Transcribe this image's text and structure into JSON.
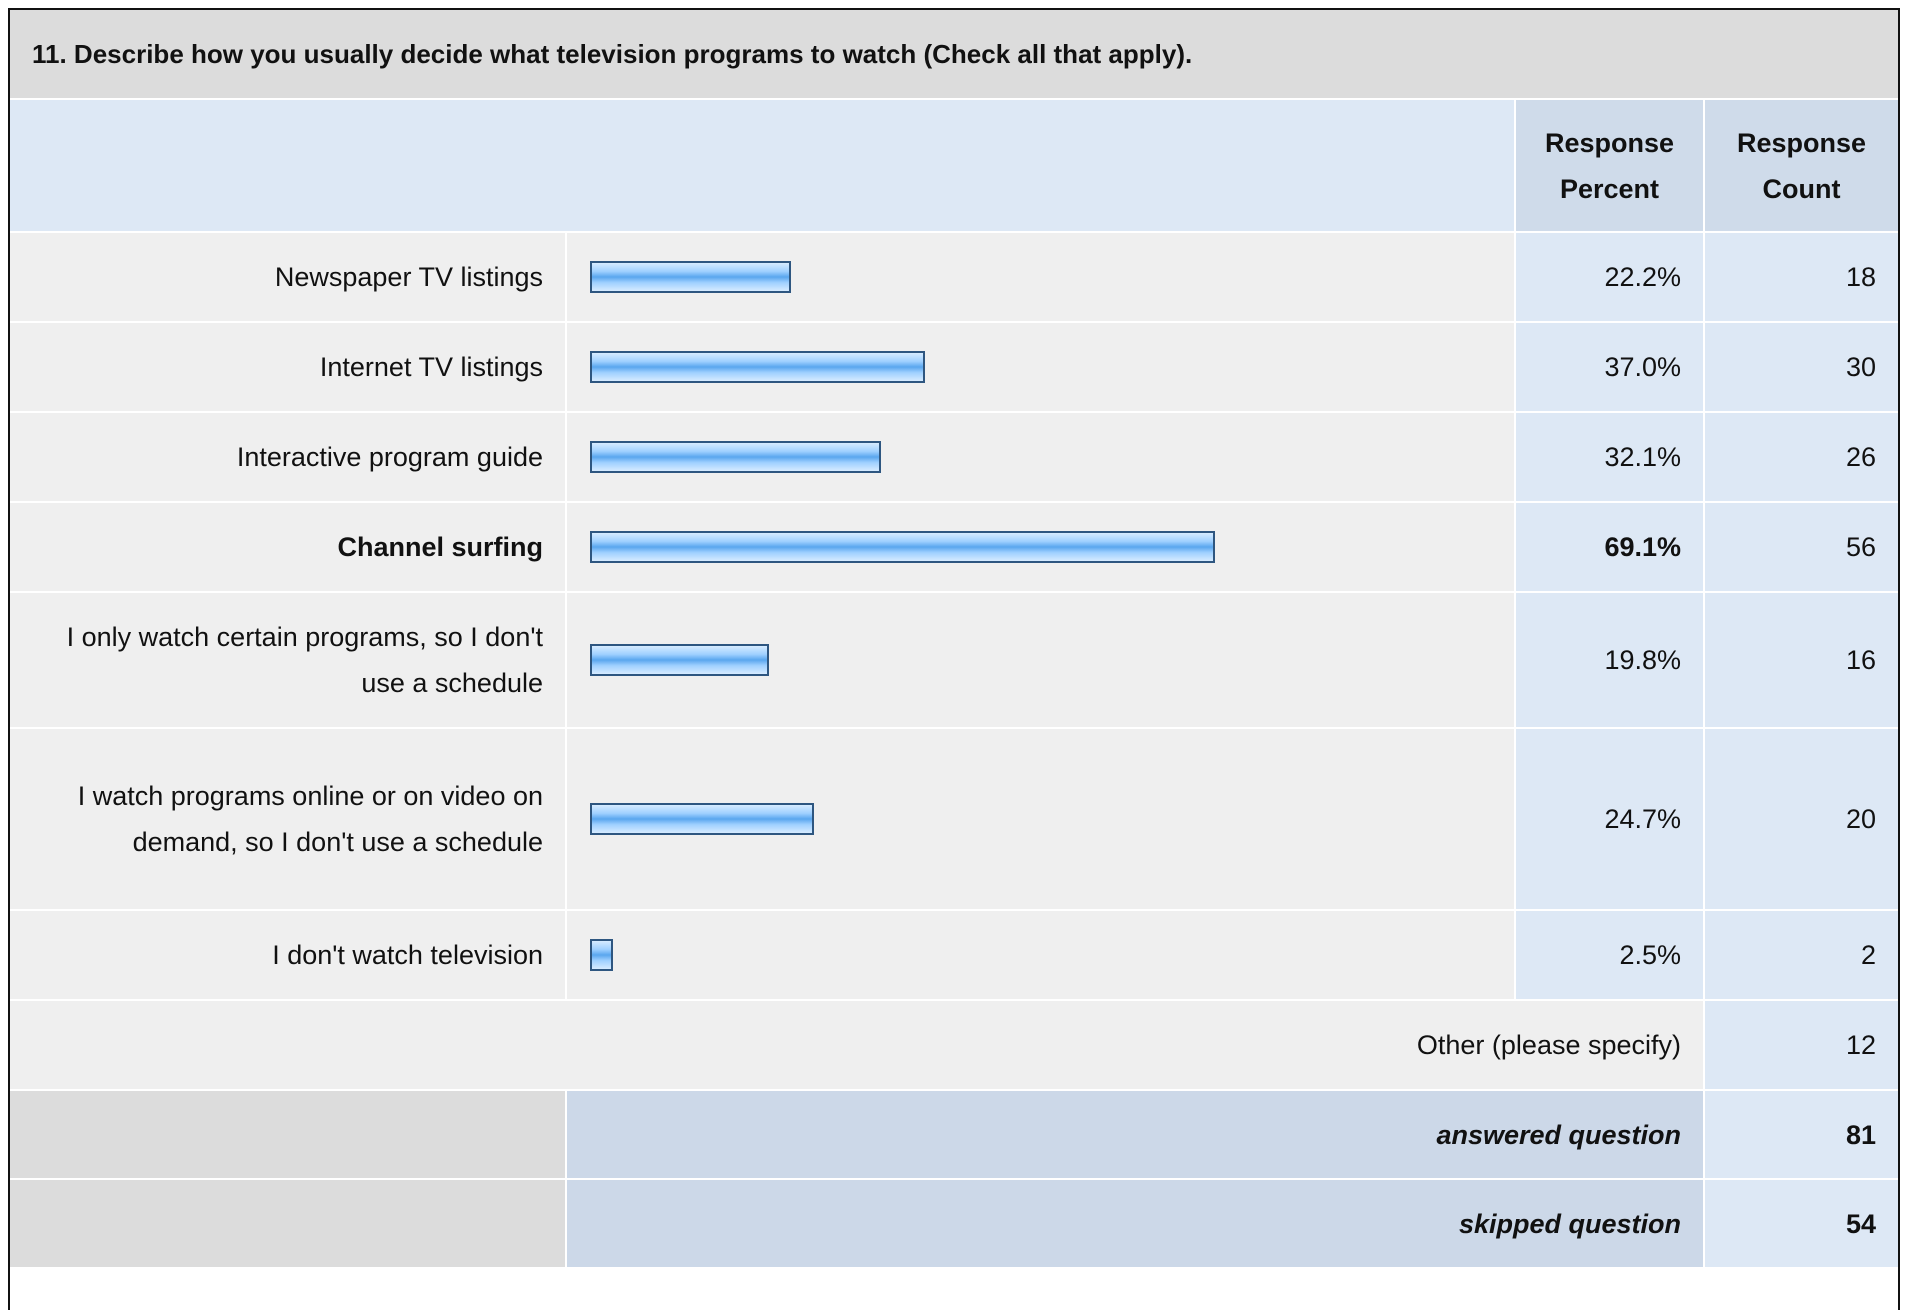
{
  "title": "11. Describe how you usually decide what television programs to watch (Check all that apply).",
  "header": {
    "percent": "Response Percent",
    "count": "Response Count"
  },
  "table": {
    "rows": [
      {
        "label": "Newspaper TV listings",
        "percent": 22.2,
        "percent_label": "22.2%",
        "count": 18
      },
      {
        "label": "Internet TV listings",
        "percent": 37.0,
        "percent_label": "37.0%",
        "count": 30
      },
      {
        "label": "Interactive program guide",
        "percent": 32.1,
        "percent_label": "32.1%",
        "count": 26
      },
      {
        "label": "Channel surfing",
        "percent": 69.1,
        "percent_label": "69.1%",
        "count": 56,
        "highlight": true
      },
      {
        "label": "I only watch certain programs, so I don't use a schedule",
        "percent": 19.8,
        "percent_label": "19.8%",
        "count": 16
      },
      {
        "label": "I watch programs online or on video on demand, so I don't use a schedule",
        "percent": 24.7,
        "percent_label": "24.7%",
        "count": 20
      },
      {
        "label": "I don't watch television",
        "percent": 2.5,
        "percent_label": "2.5%",
        "count": 2
      }
    ]
  },
  "other": {
    "label": "Other (please specify)",
    "count": 12
  },
  "answered": {
    "label": "answered question",
    "count": 81
  },
  "skipped": {
    "label": "skipped question",
    "count": 54
  }
}
